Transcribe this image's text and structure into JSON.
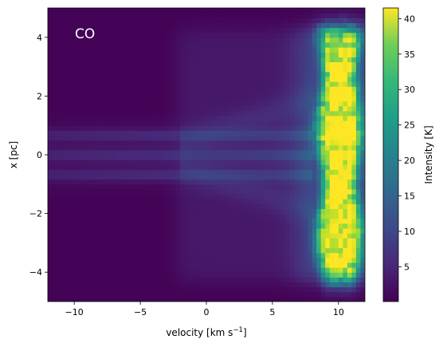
{
  "chart_data": {
    "type": "heatmap",
    "title": "",
    "annotation": "CO",
    "xlabel": "velocity [km s",
    "xlabel_sup": "−1",
    "xlabel_end": "]",
    "ylabel": "x [pc]",
    "xlim": [
      -12,
      12
    ],
    "ylim": [
      -5,
      5
    ],
    "xticks": [
      -10,
      -5,
      0,
      5,
      10
    ],
    "xtick_labels": [
      "−10",
      "−5",
      "0",
      "5",
      "10"
    ],
    "yticks": [
      -4,
      -2,
      0,
      2,
      4
    ],
    "ytick_labels": [
      "−4",
      "−2",
      "0",
      "2",
      "4"
    ],
    "colorbar": {
      "label": "Intensity [K]",
      "range": [
        0.1,
        41.5
      ],
      "ticks": [
        5,
        10,
        15,
        20,
        25,
        30,
        35,
        40
      ],
      "tick_labels": [
        "5",
        "10",
        "15",
        "20",
        "25",
        "30",
        "35",
        "40"
      ],
      "colormap": "viridis"
    },
    "features": {
      "bright_band_velocity": [
        8.0,
        11.8
      ],
      "bright_band_peak_K": 41,
      "central_stream_x_range": [
        -1.0,
        1.0
      ],
      "central_stream_velocity_start": -12,
      "central_stream_K": 5,
      "background_K": 0.3
    }
  }
}
